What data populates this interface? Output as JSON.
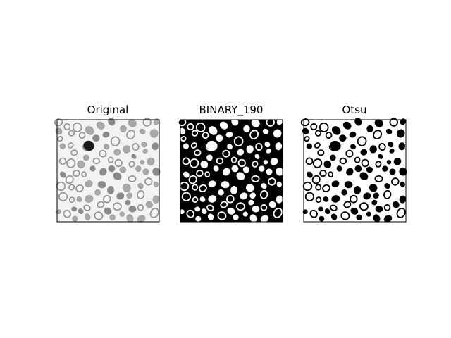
{
  "figure": {
    "background": "#ffffff",
    "panels": [
      {
        "id": "original",
        "title": "Original",
        "style": "grayscale",
        "bg": "#f3f3f3"
      },
      {
        "id": "binary",
        "title": "BINARY_190",
        "style": "binary-dark",
        "bg": "#000000"
      },
      {
        "id": "otsu",
        "title": "Otsu",
        "style": "binary-light",
        "bg": "#ffffff"
      }
    ]
  }
}
